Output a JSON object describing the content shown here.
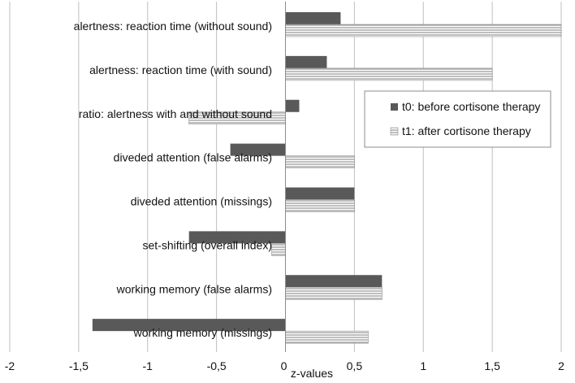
{
  "chart_data": {
    "type": "bar",
    "orientation": "horizontal",
    "xlabel": "z-values",
    "xlim": [
      -2,
      2
    ],
    "xticks": [
      -2,
      -1.5,
      -1,
      -0.5,
      0,
      0.5,
      1,
      1.5,
      2
    ],
    "xtick_labels": [
      "-2",
      "-1,5",
      "-1",
      "-0,5",
      "0",
      "0,5",
      "1",
      "1,5",
      "2"
    ],
    "grid": "vertical",
    "legend_position": "right",
    "categories": [
      "alertness: reaction time (without sound)",
      "alertness: reaction time (with sound)",
      "ratio: alertness with and without sound",
      "diveded attention (false alarms)",
      "diveded attention (missings)",
      "set-shifting (overall index)",
      "working memory (false alarms)",
      "working memory (missings)"
    ],
    "series": [
      {
        "name": "t0: before cortisone therapy",
        "fill": "solid",
        "color": "#595959",
        "values": [
          0.4,
          0.3,
          0.1,
          -0.4,
          0.5,
          -0.7,
          0.7,
          -1.4
        ]
      },
      {
        "name": "t1: after cortisone therapy",
        "fill": "horizontal-stripes",
        "color": "#7f7f7f",
        "values": [
          2.0,
          1.5,
          -0.7,
          0.5,
          0.5,
          -0.1,
          0.7,
          0.6
        ]
      }
    ]
  }
}
